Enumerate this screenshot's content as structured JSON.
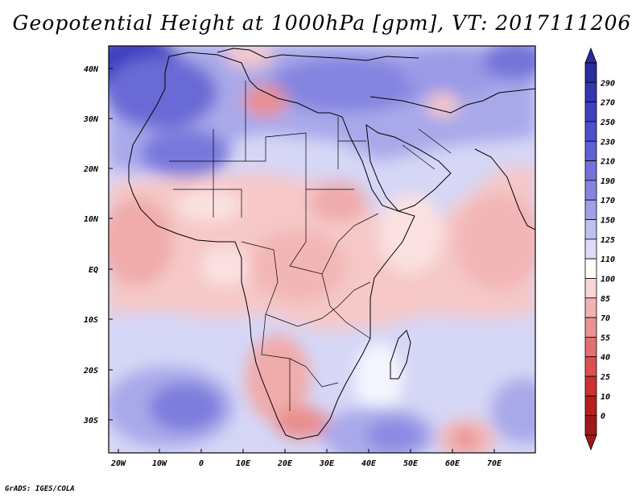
{
  "header": {
    "title": "Geopotential Height at 1000hPa [gpm], VT: 2017111206"
  },
  "footer": {
    "credit": "GrADS: IGES/COLA"
  },
  "axes": {
    "lat_labels": [
      "40N",
      "30N",
      "20N",
      "10N",
      "EQ",
      "10S",
      "20S",
      "30S"
    ],
    "lon_labels": [
      "20W",
      "10W",
      "0",
      "10E",
      "20E",
      "30E",
      "40E",
      "50E",
      "60E",
      "70E"
    ]
  },
  "colorbar": {
    "levels": [
      "290",
      "270",
      "250",
      "230",
      "210",
      "190",
      "170",
      "150",
      "125",
      "110",
      "100",
      "85",
      "70",
      "55",
      "40",
      "25",
      "10",
      "0"
    ],
    "colors": [
      "#2b2b9e",
      "#3535b0",
      "#4040c0",
      "#4f4fca",
      "#6060d3",
      "#7272da",
      "#8585e1",
      "#a0a0e8",
      "#c0c0f0",
      "#dcdcf8",
      "#ffffff",
      "#f8d4d4",
      "#f2b2b2",
      "#ea9292",
      "#e37070",
      "#db5050",
      "#cd3030",
      "#b51f1f",
      "#a01818"
    ]
  },
  "map": {
    "colors": {
      "ocean_blue": "#d6d6f6",
      "mid_blue": "#a9a9ea",
      "deep_blue": "#6a6ad6",
      "darkest_blue": "#3f3fbf",
      "pink": "#f6c8c8",
      "light_pink": "#fbe1e1",
      "red": "#e98f8f",
      "white": "#ffffff",
      "border": "#000000"
    }
  }
}
